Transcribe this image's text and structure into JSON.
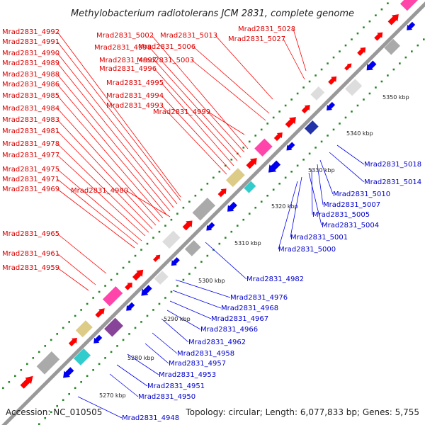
{
  "title": "Methylobacterium radiotolerans JCM 2831, complete genome",
  "footer": {
    "accession": "Accession: NC_010505",
    "summary": "Topology: circular; Length: 6,077,833 bp; Genes: 5,755"
  },
  "colors": {
    "forward": "#ff0000",
    "reverse": "#0000ee",
    "backbone": "#999999",
    "ticks": "#228822"
  },
  "kbp_marks": [
    "5270 kbp",
    "5280 kbp",
    "5290 kbp",
    "5300 kbp",
    "5310 kbp",
    "5320 kbp",
    "5330 kbp",
    "5340 kbp",
    "5350 kbp"
  ],
  "red_labels": [
    "Mrad2831_4992",
    "Mrad2831_4991",
    "Mrad2831_4990",
    "Mrad2831_4989",
    "Mrad2831_4988",
    "Mrad2831_4986",
    "Mrad2831_4985",
    "Mrad2831_4984",
    "Mrad2831_4983",
    "Mrad2831_4981",
    "Mrad2831_4978",
    "Mrad2831_4977",
    "Mrad2831_4975",
    "Mrad2831_4971",
    "Mrad2831_4969",
    "Mrad2831_4965",
    "Mrad2831_4961",
    "Mrad2831_4959",
    "Mrad2831_5002",
    "Mrad2831_4998",
    "Mrad2831_4997",
    "Mrad2831_4996",
    "Mrad2831_4995",
    "Mrad2831_4994",
    "Mrad2831_4993",
    "Mrad2831_4980",
    "Mrad2831_5013",
    "Mrad2831_5006",
    "Mrad2831_5003",
    "Mrad2831_4999",
    "Mrad2831_5028",
    "Mrad2831_5027"
  ],
  "blue_labels": [
    "Mrad2831_5018",
    "Mrad2831_5014",
    "Mrad2831_5010",
    "Mrad2831_5007",
    "Mrad2831_5005",
    "Mrad2831_5004",
    "Mrad2831_5001",
    "Mrad2831_5000",
    "Mrad2831_4982",
    "Mrad2831_4976",
    "Mrad2831_4968",
    "Mrad2831_4967",
    "Mrad2831_4966",
    "Mrad2831_4962",
    "Mrad2831_4958",
    "Mrad2831_4957",
    "Mrad2831_4953",
    "Mrad2831_4951",
    "Mrad2831_4950",
    "Mrad2831_4948"
  ]
}
